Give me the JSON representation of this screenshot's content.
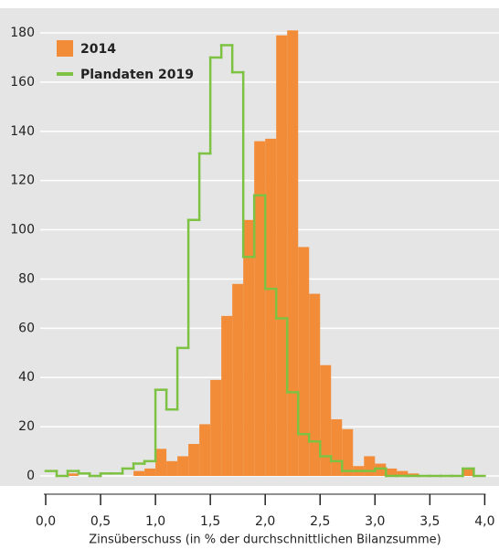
{
  "chart_data": {
    "type": "histogram",
    "xlabel": "Zinsüberschuss (in % der durchschnittlichen Bilanzsumme)",
    "bins": [
      0,
      0.1,
      0.2,
      0.3,
      0.4,
      0.5,
      0.6,
      0.7,
      0.8,
      0.9,
      1,
      1.1,
      1.2,
      1.3,
      1.4,
      1.5,
      1.6,
      1.7,
      1.8,
      1.9,
      2,
      2.1,
      2.2,
      2.3,
      2.4,
      2.5,
      2.6,
      2.7,
      2.8,
      2.9,
      3,
      3.1,
      3.2,
      3.3,
      3.4,
      3.5,
      3.6,
      3.7,
      3.8,
      3.9,
      4
    ],
    "series": [
      {
        "name": "2014",
        "color": "#f28c38",
        "style": "bar",
        "values": [
          0,
          0,
          1,
          0,
          0,
          0,
          0,
          0,
          2,
          3,
          11,
          6,
          8,
          13,
          21,
          39,
          65,
          78,
          104,
          136,
          137,
          179,
          181,
          93,
          74,
          45,
          23,
          19,
          4,
          8,
          5,
          3,
          2,
          1,
          0,
          0,
          0,
          0,
          3,
          0
        ]
      },
      {
        "name": "Plandaten 2019",
        "color": "#7dc242",
        "style": "step",
        "values": [
          2,
          0,
          2,
          1,
          0,
          1,
          1,
          3,
          5,
          6,
          35,
          27,
          52,
          104,
          131,
          170,
          175,
          164,
          89,
          114,
          76,
          64,
          34,
          17,
          14,
          8,
          6,
          2,
          2,
          2,
          3,
          0,
          0,
          0,
          0,
          0,
          0,
          0,
          3,
          0
        ]
      }
    ],
    "xlim": [
      0,
      4.13
    ],
    "xticks": [
      {
        "value": 0,
        "label": "0,0"
      },
      {
        "value": 0.5,
        "label": "0,5"
      },
      {
        "value": 1,
        "label": "1,0"
      },
      {
        "value": 1.5,
        "label": "1,5"
      },
      {
        "value": 2,
        "label": "2,0"
      },
      {
        "value": 2.5,
        "label": "2,5"
      },
      {
        "value": 3,
        "label": "3,0"
      },
      {
        "value": 3.5,
        "label": "3,5"
      },
      {
        "value": 4,
        "label": "4,0"
      }
    ],
    "ylim": [
      0,
      180
    ],
    "yticks": [
      0,
      20,
      40,
      60,
      80,
      100,
      120,
      140,
      160,
      180
    ],
    "grid": true,
    "legend": "upper left"
  }
}
